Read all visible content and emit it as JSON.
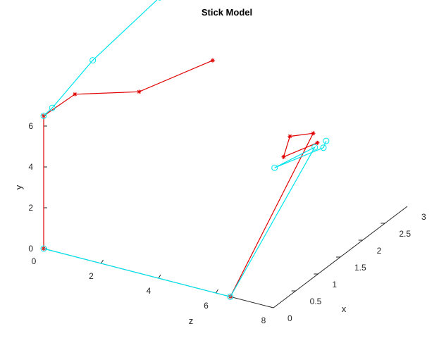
{
  "chart_data": {
    "type": "line3d",
    "title": "Stick Model",
    "xlabel": "x",
    "ylabel": "y",
    "zlabel": "z",
    "xlim": [
      0,
      3
    ],
    "ylim": [
      0,
      6
    ],
    "zlim": [
      0,
      8
    ],
    "xticks": [
      "0",
      "0.5",
      "1",
      "1.5",
      "2",
      "2.5",
      "3"
    ],
    "yticks": [
      "0",
      "2",
      "4",
      "6"
    ],
    "zticks": [
      "0",
      "2",
      "4",
      "6",
      "8"
    ],
    "series": [
      {
        "color": "#e00000",
        "marker": "asterisk",
        "paths": [
          [
            [
              0,
              0,
              0
            ],
            [
              0,
              6.5,
              0
            ],
            [
              0.7,
              6.4,
              0
            ],
            [
              1.3,
              6,
              1.3
            ],
            [
              2.5,
              5.8,
              2
            ]
          ],
          [
            [
              0,
              0,
              6.5
            ],
            [
              2.05,
              4.5,
              6.2
            ],
            [
              1.85,
              4.5,
              5.7
            ],
            [
              1.9,
              3.3,
              5.4
            ],
            [
              2.08,
              4.02,
              6.3
            ]
          ]
        ]
      },
      {
        "color": "#00e5ee",
        "marker": "circle",
        "paths": [
          [
            [
              0,
              0,
              0
            ],
            [
              0,
              0,
              6.5
            ],
            [
              2.02,
              3.9,
              6.3
            ],
            [
              1.7,
              3.1,
              5.4
            ],
            [
              2.15,
              3.7,
              6.4
            ],
            [
              2.18,
              4.0,
              6.45
            ]
          ],
          [
            [
              0,
              6.5,
              0
            ],
            [
              0,
              7,
              0.3
            ],
            [
              1.1,
              7.4,
              0
            ],
            [
              2.6,
              8,
              0
            ]
          ]
        ]
      }
    ]
  }
}
